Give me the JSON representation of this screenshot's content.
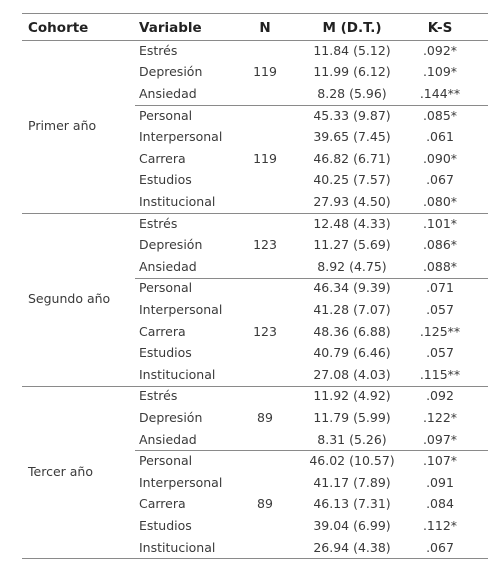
{
  "table": {
    "header": [
      "Cohorte",
      "Variable",
      "N",
      "M (D.T.)",
      "K-S"
    ],
    "cohorts": [
      {
        "name": "Primer año",
        "groups": [
          {
            "n": "119",
            "rows": [
              [
                "Estrés",
                "11.84 (5.12)",
                ".092*"
              ],
              [
                "Depresión",
                "11.99 (6.12)",
                ".109*"
              ],
              [
                "Ansiedad",
                "8.28 (5.96)",
                ".144**"
              ]
            ]
          },
          {
            "n": "119",
            "rows": [
              [
                "Personal",
                "45.33 (9.87)",
                ".085*"
              ],
              [
                "Interpersonal",
                "39.65 (7.45)",
                ".061"
              ],
              [
                "Carrera",
                "46.82 (6.71)",
                ".090*"
              ],
              [
                "Estudios",
                "40.25 (7.57)",
                ".067"
              ],
              [
                "Institucional",
                "27.93 (4.50)",
                ".080*"
              ]
            ]
          }
        ]
      },
      {
        "name": "Segundo año",
        "groups": [
          {
            "n": "123",
            "rows": [
              [
                "Estrés",
                "12.48 (4.33)",
                ".101*"
              ],
              [
                "Depresión",
                "11.27 (5.69)",
                ".086*"
              ],
              [
                "Ansiedad",
                "8.92 (4.75)",
                ".088*"
              ]
            ]
          },
          {
            "n": "123",
            "rows": [
              [
                "Personal",
                "46.34 (9.39)",
                ".071"
              ],
              [
                "Interpersonal",
                "41.28 (7.07)",
                ".057"
              ],
              [
                "Carrera",
                "48.36 (6.88)",
                ".125**"
              ],
              [
                "Estudios",
                "40.79 (6.46)",
                ".057"
              ],
              [
                "Institucional",
                "27.08 (4.03)",
                ".115**"
              ]
            ]
          }
        ]
      },
      {
        "name": "Tercer año",
        "groups": [
          {
            "n": "89",
            "rows": [
              [
                "Estrés",
                "11.92 (4.92)",
                ".092"
              ],
              [
                "Depresión",
                "11.79 (5.99)",
                ".122*"
              ],
              [
                "Ansiedad",
                "8.31 (5.26)",
                ".097*"
              ]
            ]
          },
          {
            "n": "89",
            "rows": [
              [
                "Personal",
                "46.02 (10.57)",
                ".107*"
              ],
              [
                "Interpersonal",
                "41.17 (7.89)",
                ".091"
              ],
              [
                "Carrera",
                "46.13 (7.31)",
                ".084"
              ],
              [
                "Estudios",
                "39.04 (6.99)",
                ".112*"
              ],
              [
                "Institucional",
                "26.94 (4.38)",
                ".067"
              ]
            ]
          }
        ]
      }
    ]
  }
}
